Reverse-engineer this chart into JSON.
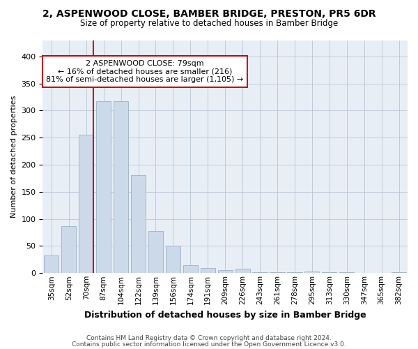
{
  "title": "2, ASPENWOOD CLOSE, BAMBER BRIDGE, PRESTON, PR5 6DR",
  "subtitle": "Size of property relative to detached houses in Bamber Bridge",
  "xlabel": "Distribution of detached houses by size in Bamber Bridge",
  "ylabel": "Number of detached properties",
  "bar_color": "#ccd9e8",
  "bar_edge_color": "#9ab0c8",
  "background_color": "#ffffff",
  "ax_facecolor": "#e8eef5",
  "grid_color": "#b0bece",
  "categories": [
    "35sqm",
    "52sqm",
    "70sqm",
    "87sqm",
    "104sqm",
    "122sqm",
    "139sqm",
    "156sqm",
    "174sqm",
    "191sqm",
    "209sqm",
    "226sqm",
    "243sqm",
    "261sqm",
    "278sqm",
    "295sqm",
    "313sqm",
    "330sqm",
    "347sqm",
    "365sqm",
    "382sqm"
  ],
  "values": [
    33,
    87,
    256,
    317,
    317,
    181,
    78,
    50,
    14,
    10,
    5,
    8,
    2,
    2,
    1,
    3,
    1,
    1,
    0,
    0,
    2
  ],
  "property_line_x": 2.43,
  "annotation_text": "2 ASPENWOOD CLOSE: 79sqm\n← 16% of detached houses are smaller (216)\n81% of semi-detached houses are larger (1,105) →",
  "annotation_box_color": "#ffffff",
  "annotation_box_edge": "#cc0000",
  "red_line_color": "#cc0000",
  "footer1": "Contains HM Land Registry data © Crown copyright and database right 2024.",
  "footer2": "Contains public sector information licensed under the Open Government Licence v3.0.",
  "ylim": [
    0,
    430
  ],
  "figsize": [
    6.0,
    5.0
  ],
  "dpi": 100
}
